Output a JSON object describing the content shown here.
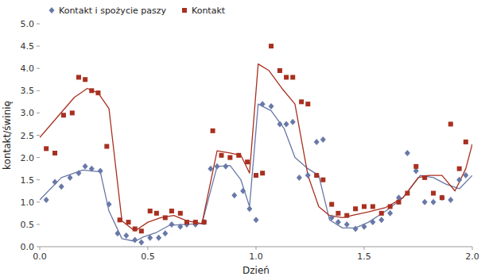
{
  "chart_data": {
    "type": "scatter",
    "xlabel": "Dzień",
    "ylabel": "kontakt/świnię",
    "xlim": [
      0,
      2
    ],
    "ylim": [
      0,
      5.0
    ],
    "xticks": [
      {
        "value": 0,
        "label": "0.0"
      },
      0.5,
      {
        "value": 1,
        "label": "1.0"
      },
      1.5,
      {
        "value": 2,
        "label": "2.0"
      }
    ],
    "yticks": [
      {
        "value": 0,
        "label": "0.0"
      },
      0.5,
      {
        "value": 1,
        "label": "1.0"
      },
      1.5,
      {
        "value": 2,
        "label": "2.0"
      },
      2.5,
      {
        "value": 3,
        "label": "3.0"
      },
      3.5,
      {
        "value": 4,
        "label": "4.0"
      },
      4.5,
      {
        "value": 5,
        "label": "5.0"
      }
    ],
    "grid": false,
    "legend": "upper left",
    "series": [
      {
        "name": "Kontakt i spożycie paszy",
        "type": "scatter",
        "marker": "diamond",
        "color": "#6878a8",
        "x": [
          0.03,
          0.07,
          0.1,
          0.14,
          0.18,
          0.21,
          0.24,
          0.28,
          0.32,
          0.36,
          0.4,
          0.44,
          0.47,
          0.51,
          0.55,
          0.58,
          0.61,
          0.65,
          0.68,
          0.72,
          0.76,
          0.79,
          0.82,
          0.86,
          0.9,
          0.94,
          0.97,
          1.0,
          1.03,
          1.07,
          1.11,
          1.14,
          1.17,
          1.2,
          1.24,
          1.28,
          1.31,
          1.35,
          1.38,
          1.42,
          1.46,
          1.5,
          1.54,
          1.58,
          1.62,
          1.66,
          1.7,
          1.74,
          1.78,
          1.82,
          1.86,
          1.9,
          1.94,
          1.97
        ],
        "values": [
          1.05,
          1.45,
          1.35,
          1.55,
          1.65,
          1.8,
          1.75,
          1.7,
          0.95,
          0.3,
          0.25,
          0.15,
          0.1,
          0.2,
          0.2,
          0.3,
          0.5,
          0.45,
          0.5,
          0.5,
          0.55,
          1.75,
          1.8,
          1.8,
          1.15,
          1.25,
          0.85,
          0.6,
          3.2,
          3.15,
          2.75,
          2.75,
          2.8,
          1.55,
          1.6,
          2.35,
          2.4,
          0.65,
          0.55,
          0.5,
          0.4,
          0.45,
          0.55,
          0.6,
          0.75,
          1.1,
          2.1,
          1.7,
          1.0,
          1.0,
          1.1,
          1.05,
          1.5,
          1.6
        ]
      },
      {
        "name": "Kontakt",
        "type": "scatter",
        "marker": "square",
        "color": "#a83020",
        "x": [
          0.03,
          0.07,
          0.11,
          0.15,
          0.18,
          0.21,
          0.24,
          0.27,
          0.31,
          0.37,
          0.41,
          0.44,
          0.47,
          0.51,
          0.54,
          0.58,
          0.61,
          0.65,
          0.68,
          0.72,
          0.76,
          0.8,
          0.84,
          0.88,
          0.92,
          0.96,
          1.0,
          1.03,
          1.07,
          1.11,
          1.14,
          1.17,
          1.21,
          1.24,
          1.28,
          1.31,
          1.35,
          1.38,
          1.42,
          1.46,
          1.5,
          1.54,
          1.58,
          1.62,
          1.66,
          1.7,
          1.74,
          1.78,
          1.82,
          1.86,
          1.9,
          1.94,
          1.97
        ],
        "values": [
          2.2,
          2.1,
          2.95,
          3.0,
          3.8,
          3.75,
          3.5,
          3.45,
          2.25,
          0.6,
          0.55,
          0.4,
          0.35,
          0.8,
          0.75,
          0.65,
          0.8,
          0.75,
          0.55,
          0.55,
          0.55,
          2.6,
          2.05,
          2.0,
          2.05,
          1.9,
          1.6,
          1.65,
          4.5,
          3.95,
          3.8,
          3.8,
          3.25,
          3.2,
          1.6,
          1.5,
          0.95,
          0.75,
          0.7,
          0.85,
          0.9,
          0.9,
          0.75,
          0.9,
          1.0,
          1.2,
          1.8,
          1.55,
          1.2,
          1.1,
          2.75,
          1.75,
          2.35
        ]
      },
      {
        "type": "line",
        "color": "#6878a8",
        "x": [
          0.0,
          0.1,
          0.2,
          0.28,
          0.32,
          0.38,
          0.44,
          0.48,
          0.54,
          0.6,
          0.67,
          0.75,
          0.82,
          0.88,
          0.93,
          0.97,
          1.01,
          1.07,
          1.13,
          1.18,
          1.24,
          1.29,
          1.34,
          1.4,
          1.46,
          1.52,
          1.6,
          1.68,
          1.76,
          1.82,
          1.88,
          1.94,
          2.0
        ],
        "values": [
          1.05,
          1.55,
          1.72,
          1.68,
          0.8,
          0.18,
          0.12,
          0.22,
          0.32,
          0.48,
          0.5,
          0.52,
          1.8,
          1.82,
          1.5,
          0.9,
          3.2,
          3.05,
          2.65,
          2.0,
          1.75,
          1.6,
          0.6,
          0.42,
          0.42,
          0.55,
          0.8,
          1.1,
          1.6,
          1.55,
          1.4,
          1.3,
          1.6
        ]
      },
      {
        "type": "line",
        "color": "#a83020",
        "x": [
          0.0,
          0.08,
          0.16,
          0.22,
          0.27,
          0.32,
          0.38,
          0.44,
          0.5,
          0.56,
          0.62,
          0.68,
          0.75,
          0.82,
          0.88,
          0.93,
          0.97,
          1.01,
          1.06,
          1.12,
          1.18,
          1.24,
          1.29,
          1.34,
          1.4,
          1.46,
          1.52,
          1.6,
          1.68,
          1.75,
          1.8,
          1.86,
          1.92,
          1.97,
          2.0
        ],
        "values": [
          2.45,
          2.9,
          3.35,
          3.55,
          3.45,
          3.1,
          0.58,
          0.35,
          0.55,
          0.65,
          0.7,
          0.58,
          0.52,
          2.15,
          2.1,
          2.05,
          1.65,
          4.1,
          3.95,
          3.55,
          3.2,
          1.6,
          0.9,
          0.7,
          0.65,
          0.72,
          0.78,
          0.88,
          1.1,
          1.55,
          1.6,
          1.6,
          1.25,
          1.75,
          2.3
        ]
      }
    ]
  }
}
